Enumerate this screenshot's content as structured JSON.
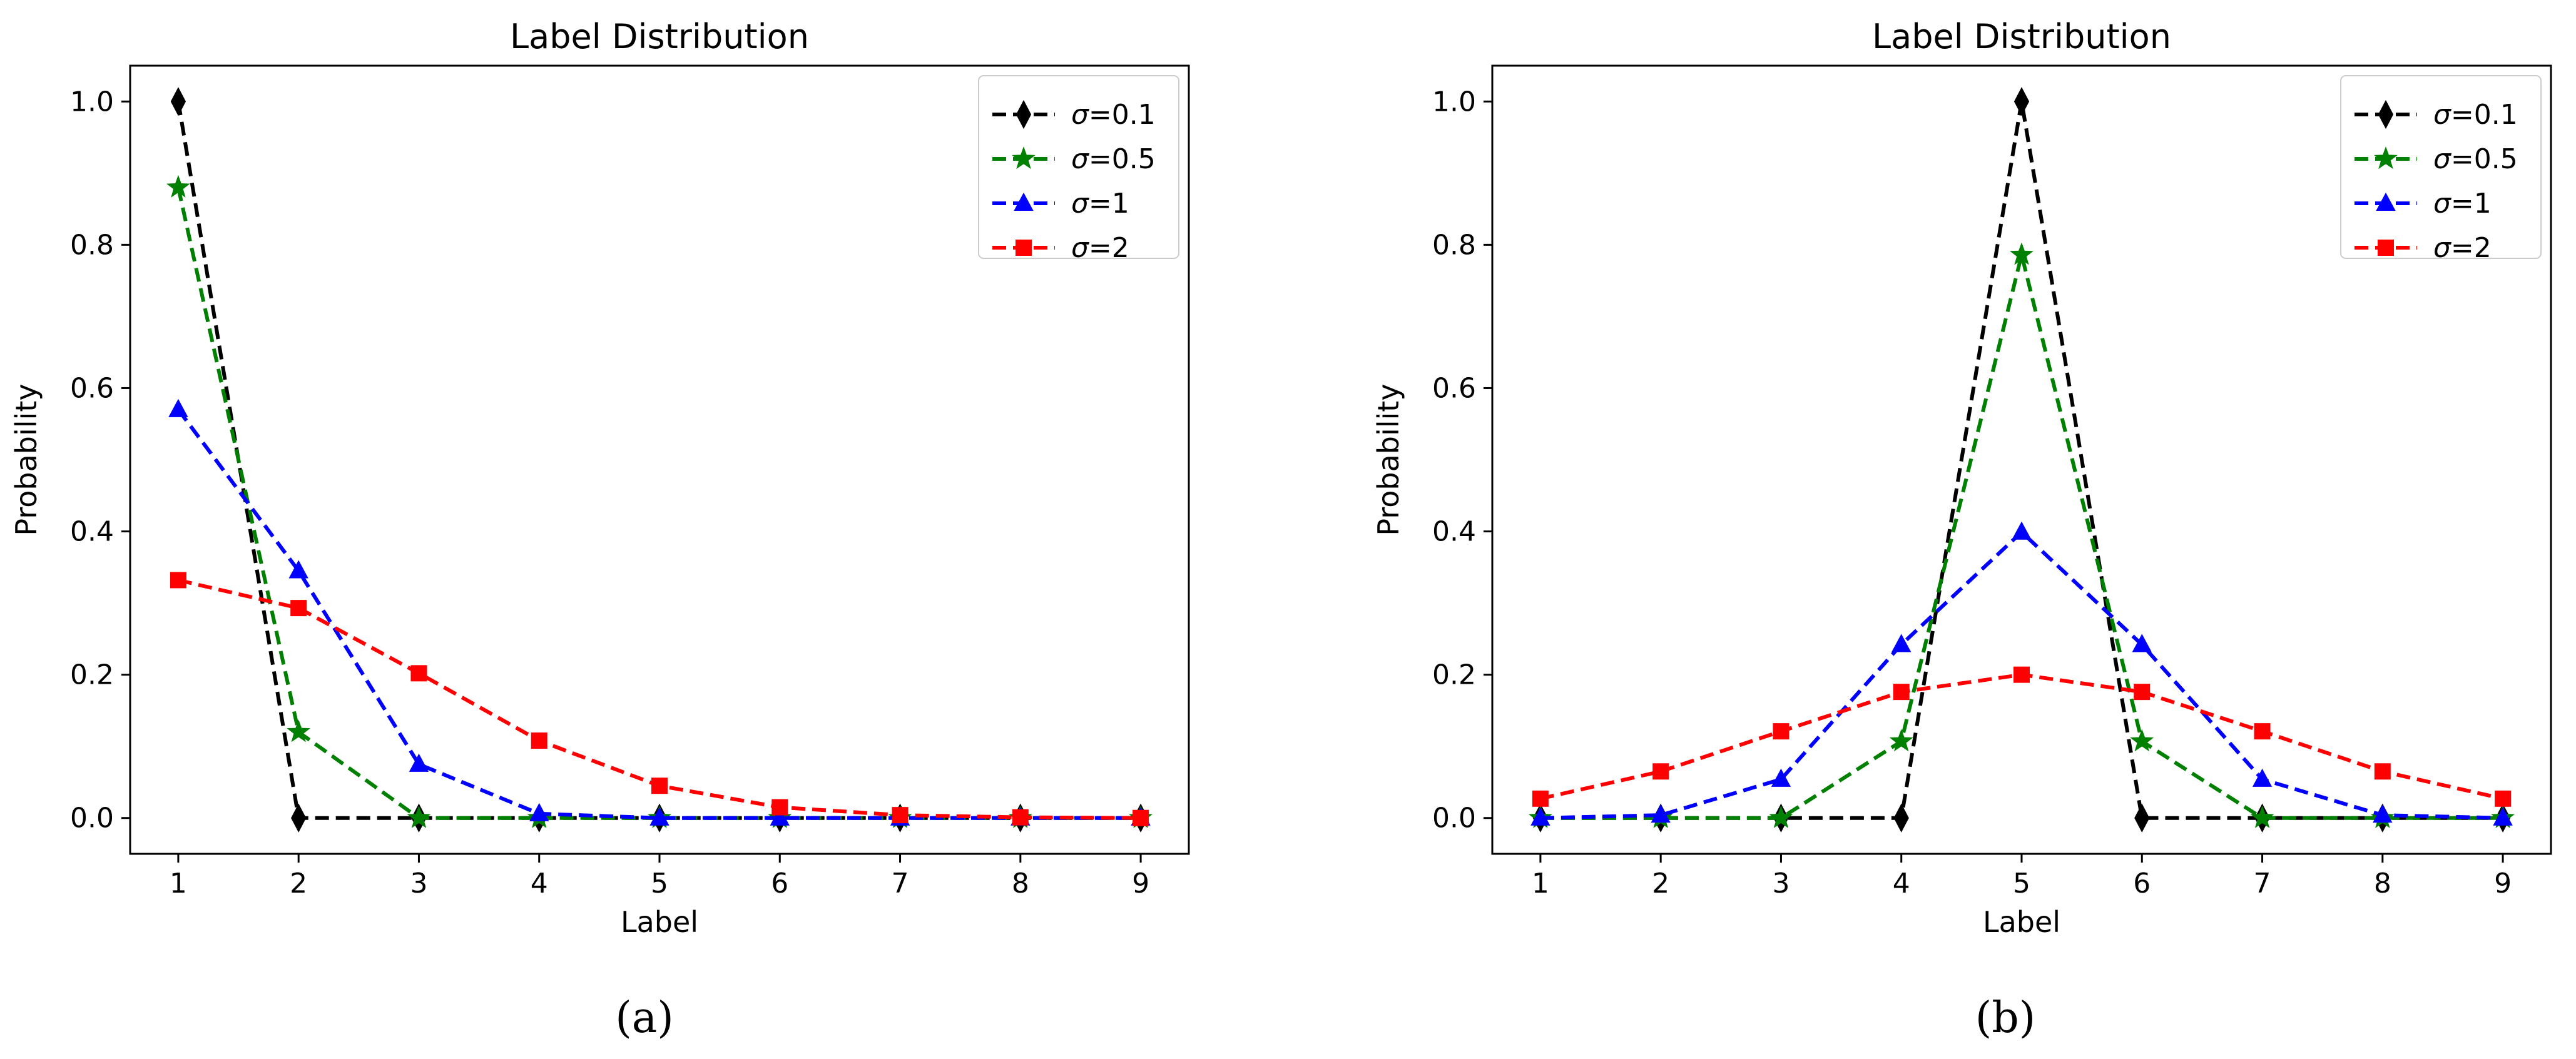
{
  "chart_data": [
    {
      "type": "line",
      "caption": "(a)",
      "title": "Label Distribution",
      "xlabel": "Label",
      "ylabel": "Probability",
      "x": [
        1,
        2,
        3,
        4,
        5,
        6,
        7,
        8,
        9
      ],
      "xticks": [
        "1",
        "2",
        "3",
        "4",
        "5",
        "6",
        "7",
        "8",
        "9"
      ],
      "yticks": [
        "0.0",
        "0.2",
        "0.4",
        "0.6",
        "0.8",
        "1.0"
      ],
      "xlim": [
        0.6,
        9.4
      ],
      "ylim": [
        -0.05,
        1.05
      ],
      "legend_position": "top-right",
      "series": [
        {
          "name": "σ=0.1",
          "sym": "σ",
          "rest": "=0.1",
          "color": "#000000",
          "marker": "diamond",
          "values": [
            1.0,
            0.0,
            0.0,
            0.0,
            0.0,
            0.0,
            0.0,
            0.0,
            0.0
          ]
        },
        {
          "name": "σ=0.5",
          "sym": "σ",
          "rest": "=0.5",
          "color": "#008000",
          "marker": "star",
          "values": [
            0.88,
            0.12,
            0.0,
            0.0,
            0.0,
            0.0,
            0.0,
            0.0,
            0.0
          ]
        },
        {
          "name": "σ=1",
          "sym": "σ",
          "rest": "=1",
          "color": "#0000ff",
          "marker": "triangle",
          "values": [
            0.57,
            0.345,
            0.075,
            0.006,
            0.0,
            0.0,
            0.0,
            0.0,
            0.0
          ]
        },
        {
          "name": "σ=2",
          "sym": "σ",
          "rest": "=2",
          "color": "#ff0000",
          "marker": "square",
          "values": [
            0.332,
            0.293,
            0.202,
            0.108,
            0.045,
            0.015,
            0.004,
            0.001,
            0.0
          ]
        }
      ]
    },
    {
      "type": "line",
      "caption": "(b)",
      "title": "Label Distribution",
      "xlabel": "Label",
      "ylabel": "Probability",
      "x": [
        1,
        2,
        3,
        4,
        5,
        6,
        7,
        8,
        9
      ],
      "xticks": [
        "1",
        "2",
        "3",
        "4",
        "5",
        "6",
        "7",
        "8",
        "9"
      ],
      "yticks": [
        "0.0",
        "0.2",
        "0.4",
        "0.6",
        "0.8",
        "1.0"
      ],
      "xlim": [
        0.6,
        9.4
      ],
      "ylim": [
        -0.05,
        1.05
      ],
      "legend_position": "top-right",
      "series": [
        {
          "name": "σ=0.1",
          "sym": "σ",
          "rest": "=0.1",
          "color": "#000000",
          "marker": "diamond",
          "values": [
            0.0,
            0.0,
            0.0,
            0.0,
            1.0,
            0.0,
            0.0,
            0.0,
            0.0
          ]
        },
        {
          "name": "σ=0.5",
          "sym": "σ",
          "rest": "=0.5",
          "color": "#008000",
          "marker": "star",
          "values": [
            0.0,
            0.0,
            0.0,
            0.107,
            0.786,
            0.107,
            0.0,
            0.0,
            0.0
          ]
        },
        {
          "name": "σ=1",
          "sym": "σ",
          "rest": "=1",
          "color": "#0000ff",
          "marker": "triangle",
          "values": [
            0.0,
            0.004,
            0.054,
            0.242,
            0.399,
            0.242,
            0.054,
            0.004,
            0.0
          ]
        },
        {
          "name": "σ=2",
          "sym": "σ",
          "rest": "=2",
          "color": "#ff0000",
          "marker": "square",
          "values": [
            0.027,
            0.065,
            0.121,
            0.176,
            0.2,
            0.176,
            0.121,
            0.065,
            0.027
          ]
        }
      ]
    }
  ]
}
